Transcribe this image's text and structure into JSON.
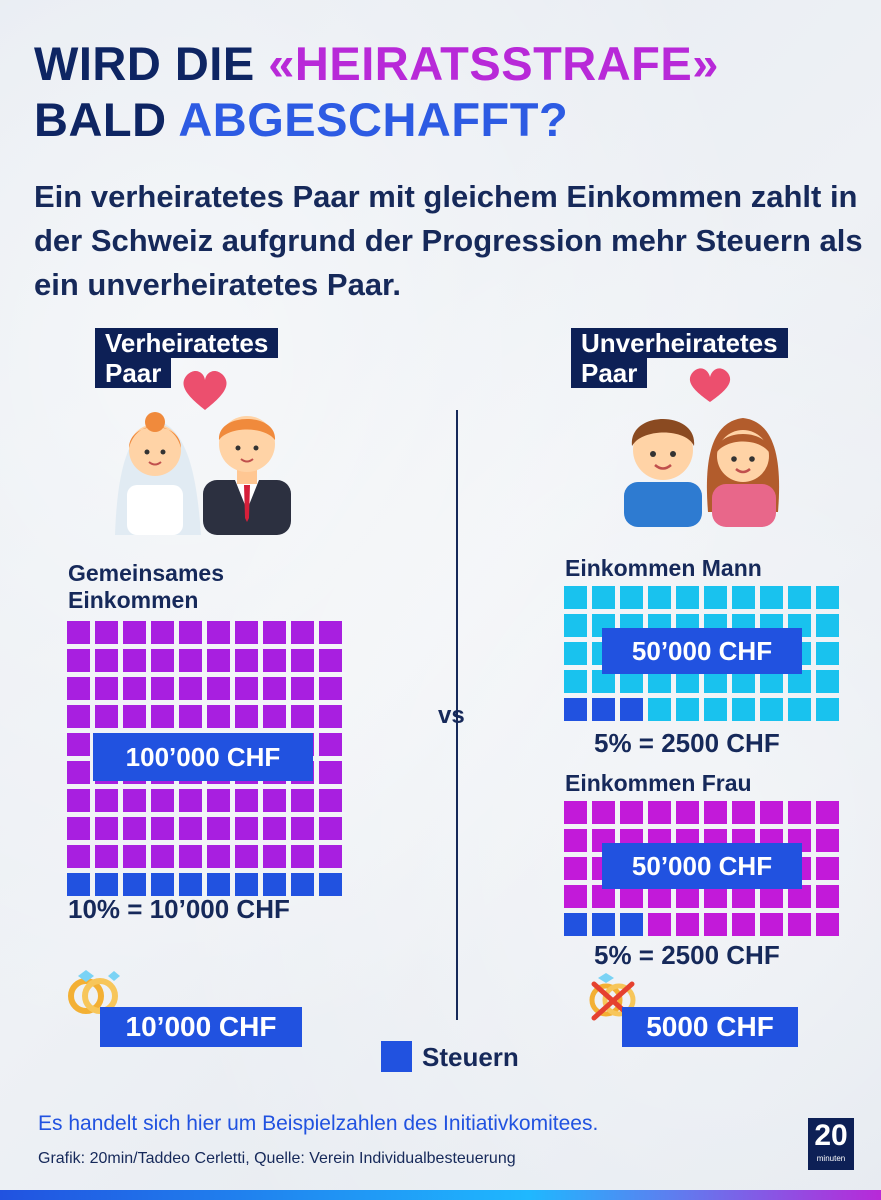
{
  "title": {
    "line1_prefix": "WIRD DIE ",
    "line1_highlight": "«HEIRATSSTRAFE»",
    "line2_prefix": "BALD ",
    "line2_highlight": "ABGESCHAFFT?"
  },
  "subtitle": "Ein verheiratetes Paar mit gleichem Einkommen zahlt in der Schweiz aufgrund der Progression mehr Steuern als ein unverheiratetes Paar.",
  "married": {
    "tag_line1": "Verheiratetes",
    "tag_line2": "Paar",
    "income_label_line1": "Gemeinsames",
    "income_label_line2": "Einkommen",
    "income_value": "100’000 CHF",
    "tax_text": "10% = 10’000 CHF",
    "total_tax": "10’000 CHF"
  },
  "unmarried": {
    "tag_line1": "Unverheiratetes",
    "tag_line2": "Paar",
    "man_label": "Einkommen Mann",
    "man_income": "50’000 CHF",
    "man_tax": "5% = 2500 CHF",
    "woman_label": "Einkommen Frau",
    "woman_income": "50’000 CHF",
    "woman_tax": "5% = 2500 CHF",
    "total_tax": "5000 CHF"
  },
  "vs": "vs",
  "legend": {
    "label": "Steuern"
  },
  "footnote": "Es handelt sich hier um Beispielzahlen des Initiativkomitees.",
  "credit": "Grafik: 20min/Taddeo Cerletti, Quelle: Verein Individualbesteuerung",
  "logo": {
    "number": "20",
    "word": "minuten"
  },
  "colors": {
    "purple": "#a81fe0",
    "cyan": "#19c2ee",
    "pink": "#c21ad9",
    "tax_blue": "#2152e0",
    "navy": "#0d2056"
  }
}
